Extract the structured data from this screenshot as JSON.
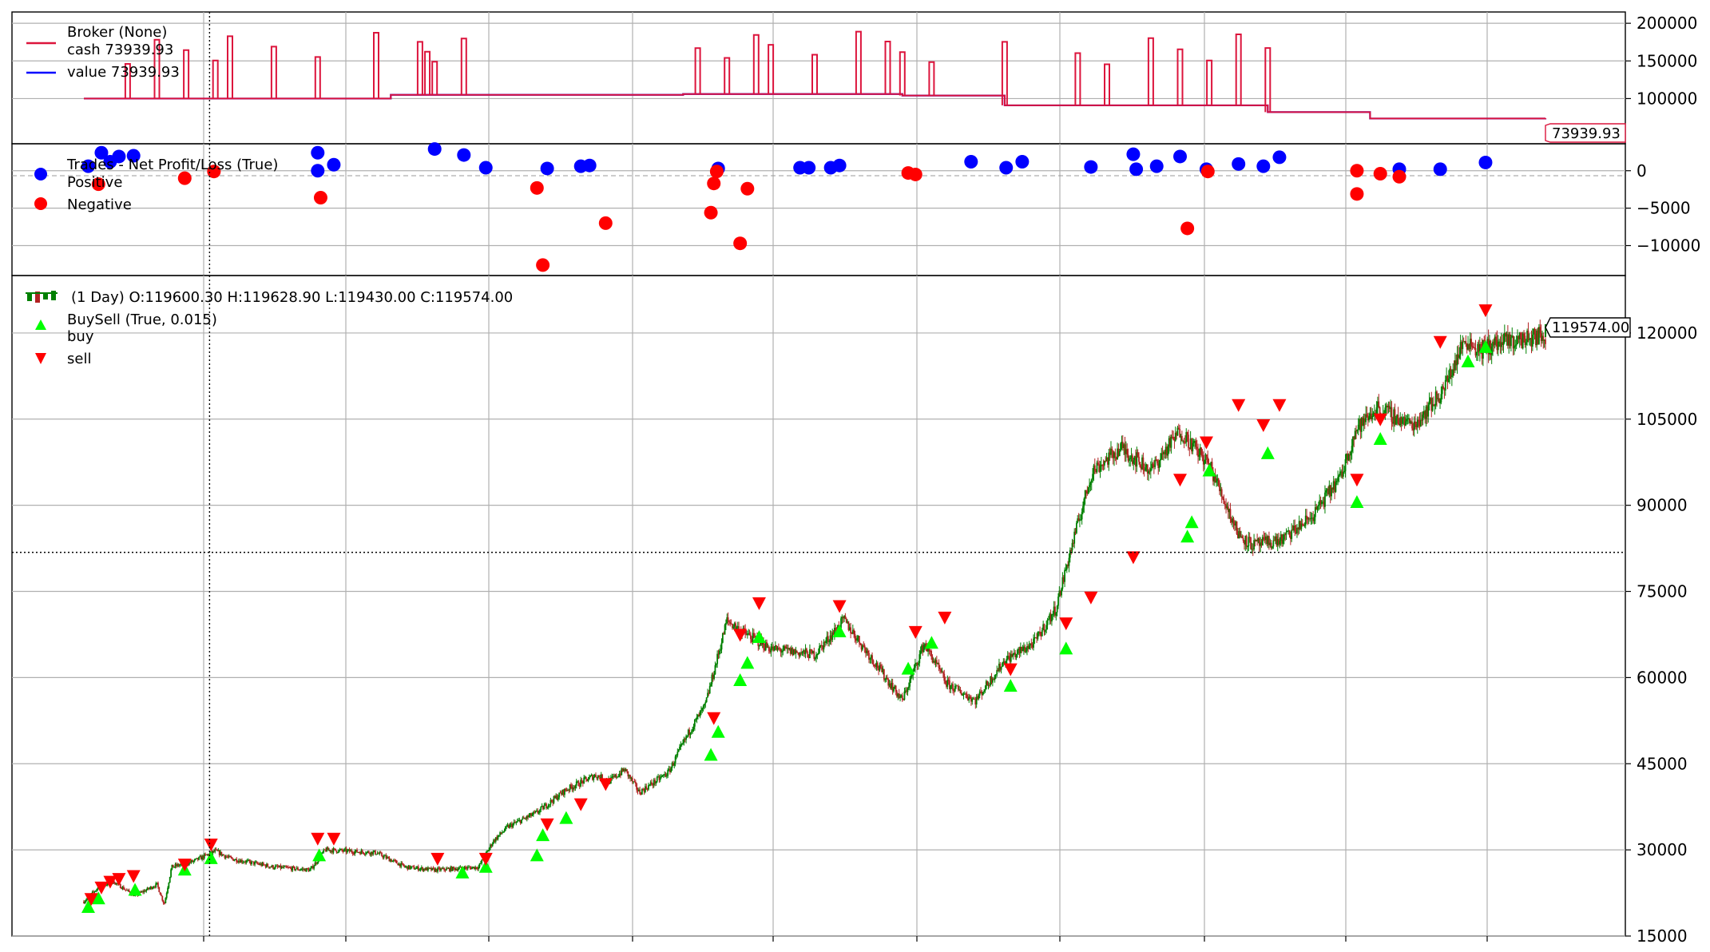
{
  "chart_data": [
    {
      "type": "line",
      "panel": "broker",
      "legend": {
        "title": "Broker (None)",
        "entries": [
          {
            "label": "cash 73939.93",
            "color": "#dc143c"
          },
          {
            "label": "value 73939.93",
            "color": "#0000ff"
          }
        ]
      },
      "ylim": [
        40000,
        215000
      ],
      "yticks": [
        {
          "value": 100000,
          "label": "100000"
        },
        {
          "value": 150000,
          "label": "150000"
        },
        {
          "value": 200000,
          "label": "200000"
        }
      ],
      "last_value_label": "73939.93",
      "grid": true,
      "steps": [
        {
          "x": 0,
          "y": 100000
        },
        {
          "x": 0.2,
          "y": 100000
        },
        {
          "x": 0.21,
          "y": 105000
        },
        {
          "x": 0.4,
          "y": 105000
        },
        {
          "x": 0.41,
          "y": 106000
        },
        {
          "x": 0.55,
          "y": 106000
        },
        {
          "x": 0.56,
          "y": 104000
        },
        {
          "x": 0.62,
          "y": 104000
        },
        {
          "x": 0.63,
          "y": 91000
        },
        {
          "x": 0.8,
          "y": 91000
        },
        {
          "x": 0.81,
          "y": 82000
        },
        {
          "x": 0.87,
          "y": 82000
        },
        {
          "x": 0.88,
          "y": 73500
        },
        {
          "x": 1.0,
          "y": 73939.93
        }
      ],
      "spikes": [
        0.03,
        0.05,
        0.07,
        0.09,
        0.1,
        0.13,
        0.16,
        0.2,
        0.23,
        0.235,
        0.24,
        0.26,
        0.42,
        0.44,
        0.46,
        0.47,
        0.5,
        0.53,
        0.55,
        0.56,
        0.58,
        0.63,
        0.68,
        0.7,
        0.73,
        0.75,
        0.77,
        0.79,
        0.81
      ],
      "spike_height": 0.8
    },
    {
      "type": "scatter",
      "panel": "trades",
      "legend": {
        "title": "Trades - Net Profit/Loss (True)",
        "entries": [
          {
            "label": "Positive",
            "color": "#0000ff"
          },
          {
            "label": "Negative",
            "color": "#ff0000"
          }
        ]
      },
      "ylim": [
        -14000,
        3600
      ],
      "yticks": [
        {
          "value": 0,
          "label": "0"
        },
        {
          "value": -5000,
          "label": "−5000"
        },
        {
          "value": -10000,
          "label": "−10000"
        }
      ],
      "grid": true,
      "positive": [
        {
          "x": 0.003,
          "y": 600
        },
        {
          "x": 0.012,
          "y": 2400
        },
        {
          "x": 0.018,
          "y": 1200
        },
        {
          "x": 0.024,
          "y": 1900
        },
        {
          "x": 0.034,
          "y": 2000
        },
        {
          "x": 0.16,
          "y": 0
        },
        {
          "x": 0.16,
          "y": 2400
        },
        {
          "x": 0.171,
          "y": 800
        },
        {
          "x": 0.24,
          "y": 2900
        },
        {
          "x": 0.26,
          "y": 2100
        },
        {
          "x": 0.275,
          "y": 400
        },
        {
          "x": 0.317,
          "y": 300
        },
        {
          "x": 0.34,
          "y": 600
        },
        {
          "x": 0.346,
          "y": 700
        },
        {
          "x": 0.434,
          "y": 300
        },
        {
          "x": 0.49,
          "y": 400
        },
        {
          "x": 0.496,
          "y": 400
        },
        {
          "x": 0.517,
          "y": 700
        },
        {
          "x": 0.511,
          "y": 400
        },
        {
          "x": 0.607,
          "y": 1200
        },
        {
          "x": 0.631,
          "y": 400
        },
        {
          "x": 0.642,
          "y": 1200
        },
        {
          "x": 0.689,
          "y": 500
        },
        {
          "x": 0.718,
          "y": 2200
        },
        {
          "x": 0.72,
          "y": 200
        },
        {
          "x": 0.734,
          "y": 600
        },
        {
          "x": 0.75,
          "y": 1900
        },
        {
          "x": 0.768,
          "y": 200
        },
        {
          "x": 0.79,
          "y": 900
        },
        {
          "x": 0.807,
          "y": 600
        },
        {
          "x": 0.818,
          "y": 1800
        },
        {
          "x": 0.9,
          "y": 200
        },
        {
          "x": 0.928,
          "y": 200
        },
        {
          "x": 0.959,
          "y": 1100
        }
      ],
      "negative": [
        {
          "x": 0.01,
          "y": -1800
        },
        {
          "x": 0.069,
          "y": -1000
        },
        {
          "x": 0.089,
          "y": -100
        },
        {
          "x": 0.162,
          "y": -3600
        },
        {
          "x": 0.31,
          "y": -2300
        },
        {
          "x": 0.314,
          "y": -12600
        },
        {
          "x": 0.357,
          "y": -7000
        },
        {
          "x": 0.429,
          "y": -5600
        },
        {
          "x": 0.431,
          "y": -1700
        },
        {
          "x": 0.433,
          "y": -100
        },
        {
          "x": 0.449,
          "y": -9700
        },
        {
          "x": 0.454,
          "y": -2400
        },
        {
          "x": 0.564,
          "y": -300
        },
        {
          "x": 0.569,
          "y": -500
        },
        {
          "x": 0.755,
          "y": -7700
        },
        {
          "x": 0.769,
          "y": -100
        },
        {
          "x": 0.871,
          "y": 0
        },
        {
          "x": 0.871,
          "y": -3100
        },
        {
          "x": 0.887,
          "y": -400
        },
        {
          "x": 0.9,
          "y": -800
        }
      ]
    },
    {
      "type": "candlestick",
      "panel": "price",
      "legend": {
        "title": "(1 Day) O:119600.30 H:119628.90 L:119430.00 C:119574.00",
        "subtitle": "BuySell (True, 0.015)",
        "entries": [
          {
            "label": "buy",
            "color": "#00ff00"
          },
          {
            "label": "sell",
            "color": "#ff0000"
          }
        ]
      },
      "ylim": [
        15000,
        130000
      ],
      "yticks": [
        {
          "value": 15000,
          "label": "15000"
        },
        {
          "value": 30000,
          "label": "30000"
        },
        {
          "value": 45000,
          "label": "45000"
        },
        {
          "value": 60000,
          "label": "60000"
        },
        {
          "value": 75000,
          "label": "75000"
        },
        {
          "value": 90000,
          "label": "90000"
        },
        {
          "value": 105000,
          "label": "105000"
        },
        {
          "value": 120000,
          "label": "120000"
        }
      ],
      "last_close_label": "119574.00",
      "up_color": "#008000",
      "down_color": "#b22222",
      "grid": true,
      "crosshair": {
        "x": 0.086,
        "y": 81800
      },
      "close_path": [
        {
          "x": 0.0,
          "y": 21000
        },
        {
          "x": 0.01,
          "y": 23500
        },
        {
          "x": 0.02,
          "y": 24500
        },
        {
          "x": 0.035,
          "y": 22000
        },
        {
          "x": 0.05,
          "y": 24000
        },
        {
          "x": 0.055,
          "y": 20500
        },
        {
          "x": 0.06,
          "y": 27000
        },
        {
          "x": 0.075,
          "y": 28000
        },
        {
          "x": 0.09,
          "y": 29800
        },
        {
          "x": 0.1,
          "y": 28500
        },
        {
          "x": 0.13,
          "y": 27000
        },
        {
          "x": 0.155,
          "y": 26500
        },
        {
          "x": 0.165,
          "y": 30000
        },
        {
          "x": 0.2,
          "y": 29500
        },
        {
          "x": 0.22,
          "y": 27000
        },
        {
          "x": 0.24,
          "y": 26500
        },
        {
          "x": 0.27,
          "y": 27000
        },
        {
          "x": 0.28,
          "y": 31500
        },
        {
          "x": 0.29,
          "y": 34000
        },
        {
          "x": 0.31,
          "y": 36500
        },
        {
          "x": 0.33,
          "y": 40500
        },
        {
          "x": 0.35,
          "y": 43000
        },
        {
          "x": 0.36,
          "y": 42000
        },
        {
          "x": 0.37,
          "y": 44000
        },
        {
          "x": 0.38,
          "y": 40000
        },
        {
          "x": 0.4,
          "y": 43500
        },
        {
          "x": 0.415,
          "y": 51000
        },
        {
          "x": 0.425,
          "y": 55000
        },
        {
          "x": 0.44,
          "y": 70000
        },
        {
          "x": 0.45,
          "y": 68000
        },
        {
          "x": 0.47,
          "y": 65000
        },
        {
          "x": 0.5,
          "y": 64000
        },
        {
          "x": 0.52,
          "y": 70000
        },
        {
          "x": 0.54,
          "y": 63000
        },
        {
          "x": 0.56,
          "y": 56000
        },
        {
          "x": 0.575,
          "y": 66000
        },
        {
          "x": 0.59,
          "y": 59000
        },
        {
          "x": 0.61,
          "y": 56000
        },
        {
          "x": 0.63,
          "y": 63000
        },
        {
          "x": 0.65,
          "y": 66000
        },
        {
          "x": 0.665,
          "y": 72000
        },
        {
          "x": 0.675,
          "y": 82000
        },
        {
          "x": 0.69,
          "y": 96000
        },
        {
          "x": 0.71,
          "y": 100000
        },
        {
          "x": 0.73,
          "y": 96000
        },
        {
          "x": 0.75,
          "y": 103000
        },
        {
          "x": 0.77,
          "y": 97000
        },
        {
          "x": 0.79,
          "y": 85000
        },
        {
          "x": 0.8,
          "y": 83000
        },
        {
          "x": 0.82,
          "y": 84000
        },
        {
          "x": 0.84,
          "y": 88000
        },
        {
          "x": 0.86,
          "y": 95000
        },
        {
          "x": 0.87,
          "y": 103000
        },
        {
          "x": 0.885,
          "y": 107000
        },
        {
          "x": 0.9,
          "y": 105000
        },
        {
          "x": 0.91,
          "y": 104000
        },
        {
          "x": 0.93,
          "y": 110000
        },
        {
          "x": 0.945,
          "y": 119000
        },
        {
          "x": 0.955,
          "y": 117000
        },
        {
          "x": 0.965,
          "y": 118000
        },
        {
          "x": 1.0,
          "y": 119574
        }
      ],
      "buy_markers": [
        {
          "x": 0.003,
          "y": 20000
        },
        {
          "x": 0.01,
          "y": 21500
        },
        {
          "x": 0.035,
          "y": 23000
        },
        {
          "x": 0.069,
          "y": 26500
        },
        {
          "x": 0.087,
          "y": 28500
        },
        {
          "x": 0.161,
          "y": 29000
        },
        {
          "x": 0.259,
          "y": 26000
        },
        {
          "x": 0.275,
          "y": 27000
        },
        {
          "x": 0.31,
          "y": 29000
        },
        {
          "x": 0.314,
          "y": 32500
        },
        {
          "x": 0.33,
          "y": 35500
        },
        {
          "x": 0.429,
          "y": 46500
        },
        {
          "x": 0.434,
          "y": 50500
        },
        {
          "x": 0.449,
          "y": 59500
        },
        {
          "x": 0.454,
          "y": 62500
        },
        {
          "x": 0.462,
          "y": 67000
        },
        {
          "x": 0.517,
          "y": 68000
        },
        {
          "x": 0.564,
          "y": 61500
        },
        {
          "x": 0.58,
          "y": 66000
        },
        {
          "x": 0.634,
          "y": 58500
        },
        {
          "x": 0.672,
          "y": 65000
        },
        {
          "x": 0.755,
          "y": 84500
        },
        {
          "x": 0.758,
          "y": 87000
        },
        {
          "x": 0.77,
          "y": 96000
        },
        {
          "x": 0.81,
          "y": 99000
        },
        {
          "x": 0.871,
          "y": 90500
        },
        {
          "x": 0.887,
          "y": 101500
        },
        {
          "x": 0.947,
          "y": 115000
        },
        {
          "x": 0.959,
          "y": 117500
        }
      ],
      "sell_markers": [
        {
          "x": 0.005,
          "y": 21500
        },
        {
          "x": 0.012,
          "y": 23500
        },
        {
          "x": 0.018,
          "y": 24500
        },
        {
          "x": 0.024,
          "y": 25000
        },
        {
          "x": 0.034,
          "y": 25500
        },
        {
          "x": 0.069,
          "y": 27500
        },
        {
          "x": 0.087,
          "y": 31000
        },
        {
          "x": 0.16,
          "y": 32000
        },
        {
          "x": 0.171,
          "y": 32000
        },
        {
          "x": 0.242,
          "y": 28500
        },
        {
          "x": 0.275,
          "y": 28500
        },
        {
          "x": 0.317,
          "y": 34500
        },
        {
          "x": 0.34,
          "y": 38000
        },
        {
          "x": 0.357,
          "y": 41500
        },
        {
          "x": 0.431,
          "y": 53000
        },
        {
          "x": 0.449,
          "y": 67500
        },
        {
          "x": 0.462,
          "y": 73000
        },
        {
          "x": 0.517,
          "y": 72500
        },
        {
          "x": 0.569,
          "y": 68000
        },
        {
          "x": 0.589,
          "y": 70500
        },
        {
          "x": 0.634,
          "y": 61500
        },
        {
          "x": 0.672,
          "y": 69500
        },
        {
          "x": 0.689,
          "y": 74000
        },
        {
          "x": 0.718,
          "y": 81000
        },
        {
          "x": 0.75,
          "y": 94500
        },
        {
          "x": 0.768,
          "y": 101000
        },
        {
          "x": 0.79,
          "y": 107500
        },
        {
          "x": 0.807,
          "y": 104000
        },
        {
          "x": 0.818,
          "y": 107500
        },
        {
          "x": 0.871,
          "y": 94500
        },
        {
          "x": 0.887,
          "y": 105000
        },
        {
          "x": 0.928,
          "y": 118500
        },
        {
          "x": 0.959,
          "y": 124000
        }
      ]
    }
  ]
}
